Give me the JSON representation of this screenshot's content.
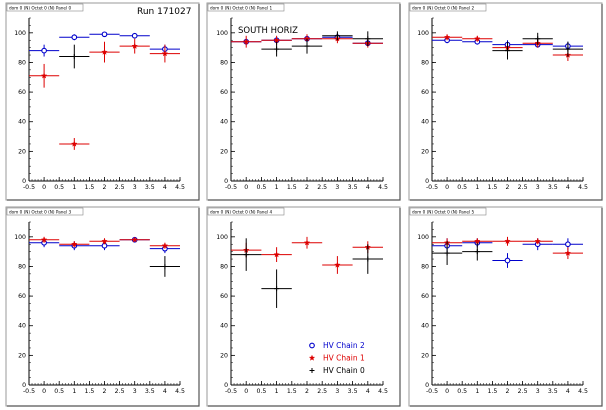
{
  "figure": {
    "run_label": "Run 171027",
    "annotation": "SOUTH HORIZ",
    "legend": [
      {
        "label": "HV Chain 2",
        "color": "#0000cc",
        "marker": "open-circle"
      },
      {
        "label": "HV Chain 1",
        "color": "#dd0000",
        "marker": "star"
      },
      {
        "label": "HV Chain 0",
        "color": "#000000",
        "marker": "cross"
      }
    ]
  },
  "chart_data": [
    {
      "type": "scatter",
      "title": "dom 0 (N) Octet 0 (N) Panel 0",
      "xlim": [
        -0.5,
        4.5
      ],
      "ylim": [
        0,
        110
      ],
      "xticks": [
        -0.5,
        0,
        0.5,
        1,
        1.5,
        2,
        2.5,
        3,
        3.5,
        4,
        4.5
      ],
      "yticks": [
        0,
        20,
        40,
        60,
        80,
        100
      ],
      "series": [
        {
          "color": "#0000cc",
          "marker": "open-circle",
          "x": [
            0,
            1,
            2,
            3,
            4
          ],
          "y": [
            88,
            97,
            99,
            98,
            89
          ],
          "yerr": [
            4,
            2,
            1,
            1,
            3
          ]
        },
        {
          "color": "#dd0000",
          "marker": "star",
          "x": [
            0,
            1,
            2,
            3,
            4
          ],
          "y": [
            71,
            25,
            87,
            91,
            86
          ],
          "yerr": [
            8,
            4,
            7,
            5,
            6
          ]
        },
        {
          "color": "#000000",
          "marker": "cross",
          "x": [
            1
          ],
          "y": [
            84
          ],
          "yerr": [
            8
          ]
        }
      ]
    },
    {
      "type": "scatter",
      "title": "dom 0 (N) Octet 0 (N) Panel 1",
      "xlim": [
        -0.5,
        4.5
      ],
      "ylim": [
        0,
        110
      ],
      "xticks": [
        -0.5,
        0,
        0.5,
        1,
        1.5,
        2,
        2.5,
        3,
        3.5,
        4,
        4.5
      ],
      "yticks": [
        0,
        20,
        40,
        60,
        80,
        100
      ],
      "series": [
        {
          "color": "#0000cc",
          "marker": "open-circle",
          "x": [
            0,
            1,
            2,
            3,
            4
          ],
          "y": [
            94,
            95,
            96,
            97,
            93
          ],
          "yerr": [
            2,
            2,
            2,
            1,
            2
          ]
        },
        {
          "color": "#dd0000",
          "marker": "star",
          "x": [
            0,
            1,
            2,
            3,
            4
          ],
          "y": [
            94,
            95,
            96,
            96,
            93
          ],
          "yerr": [
            4,
            3,
            3,
            3,
            3
          ]
        },
        {
          "color": "#000000",
          "marker": "cross",
          "x": [
            1,
            2,
            3,
            4
          ],
          "y": [
            89,
            91,
            98,
            96
          ],
          "yerr": [
            5,
            5,
            3,
            5
          ]
        }
      ]
    },
    {
      "type": "scatter",
      "title": "dom 0 (N) Octet 0 (N) Panel 2",
      "xlim": [
        -0.5,
        4.5
      ],
      "ylim": [
        0,
        110
      ],
      "xticks": [
        -0.5,
        0,
        0.5,
        1,
        1.5,
        2,
        2.5,
        3,
        3.5,
        4,
        4.5
      ],
      "yticks": [
        0,
        20,
        40,
        60,
        80,
        100
      ],
      "series": [
        {
          "color": "#0000cc",
          "marker": "open-circle",
          "x": [
            0,
            1,
            2,
            3,
            4
          ],
          "y": [
            95,
            94,
            92,
            92,
            91
          ],
          "yerr": [
            2,
            2,
            3,
            2,
            3
          ]
        },
        {
          "color": "#dd0000",
          "marker": "star",
          "x": [
            0,
            1,
            2,
            3,
            4
          ],
          "y": [
            97,
            96,
            90,
            93,
            85
          ],
          "yerr": [
            2,
            2,
            3,
            3,
            4
          ]
        },
        {
          "color": "#000000",
          "marker": "cross",
          "x": [
            2,
            3,
            4
          ],
          "y": [
            88,
            96,
            89
          ],
          "yerr": [
            6,
            4,
            5
          ]
        }
      ]
    },
    {
      "type": "scatter",
      "title": "dom 0 (N) Octet 0 (N) Panel 3",
      "xlim": [
        -0.5,
        4.5
      ],
      "ylim": [
        0,
        110
      ],
      "xticks": [
        -0.5,
        0,
        0.5,
        1,
        1.5,
        2,
        2.5,
        3,
        3.5,
        4,
        4.5
      ],
      "yticks": [
        0,
        20,
        40,
        60,
        80,
        100
      ],
      "series": [
        {
          "color": "#0000cc",
          "marker": "open-circle",
          "x": [
            0,
            1,
            2,
            3,
            4
          ],
          "y": [
            96,
            94,
            94,
            98,
            92
          ],
          "yerr": [
            3,
            3,
            3,
            1,
            3
          ]
        },
        {
          "color": "#dd0000",
          "marker": "star",
          "x": [
            0,
            1,
            2,
            3,
            4
          ],
          "y": [
            98,
            95,
            97,
            98,
            94
          ],
          "yerr": [
            2,
            2,
            2,
            1,
            2
          ]
        },
        {
          "color": "#000000",
          "marker": "cross",
          "x": [
            4
          ],
          "y": [
            80
          ],
          "yerr": [
            7
          ]
        }
      ]
    },
    {
      "type": "scatter",
      "title": "dom 0 (N) Octet 0 (N) Panel 4",
      "xlim": [
        -0.5,
        4.5
      ],
      "ylim": [
        0,
        110
      ],
      "xticks": [
        -0.5,
        0,
        0.5,
        1,
        1.5,
        2,
        2.5,
        3,
        3.5,
        4,
        4.5
      ],
      "yticks": [
        0,
        20,
        40,
        60,
        80,
        100
      ],
      "series": [
        {
          "color": "#dd0000",
          "marker": "star",
          "x": [
            0,
            1,
            2,
            3,
            4
          ],
          "y": [
            91,
            88,
            96,
            81,
            93
          ],
          "yerr": [
            5,
            5,
            4,
            6,
            4
          ]
        },
        {
          "color": "#000000",
          "marker": "cross",
          "x": [
            0,
            1,
            4
          ],
          "y": [
            88,
            65,
            85
          ],
          "yerr": [
            11,
            13,
            10
          ]
        }
      ]
    },
    {
      "type": "scatter",
      "title": "dom 0 (N) Octet 0 (N) Panel 5",
      "xlim": [
        -0.5,
        4.5
      ],
      "ylim": [
        0,
        110
      ],
      "xticks": [
        -0.5,
        0,
        0.5,
        1,
        1.5,
        2,
        2.5,
        3,
        3.5,
        4,
        4.5
      ],
      "yticks": [
        0,
        20,
        40,
        60,
        80,
        100
      ],
      "series": [
        {
          "color": "#0000cc",
          "marker": "open-circle",
          "x": [
            0,
            1,
            2,
            3,
            4
          ],
          "y": [
            94,
            96,
            84,
            95,
            95
          ],
          "yerr": [
            5,
            3,
            5,
            4,
            4
          ]
        },
        {
          "color": "#dd0000",
          "marker": "star",
          "x": [
            0,
            1,
            2,
            3,
            4
          ],
          "y": [
            96,
            97,
            97,
            97,
            89
          ],
          "yerr": [
            3,
            2,
            3,
            2,
            4
          ]
        },
        {
          "color": "#000000",
          "marker": "cross",
          "x": [
            0,
            1
          ],
          "y": [
            89,
            90
          ],
          "yerr": [
            8,
            6
          ]
        }
      ]
    }
  ]
}
